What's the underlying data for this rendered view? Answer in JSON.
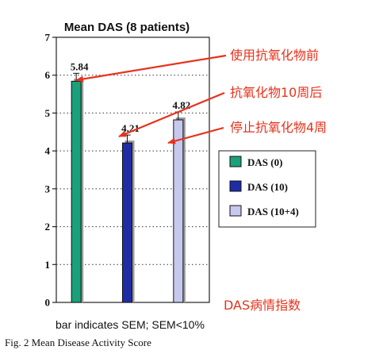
{
  "chart_data": {
    "type": "bar",
    "title": "Mean DAS (8 patients)",
    "categories": [
      "DAS (0)",
      "DAS (10)",
      "DAS (10+4)"
    ],
    "values": [
      5.84,
      4.21,
      4.82
    ],
    "value_labels": [
      "5.84",
      "4.21",
      "4.82"
    ],
    "colors": [
      "#1aa07a",
      "#1f2ca8",
      "#c6c8ee"
    ],
    "ylim": [
      0,
      7
    ],
    "yticks": [
      "0",
      "1",
      "2",
      "3",
      "4",
      "5",
      "6",
      "7"
    ],
    "grid": true,
    "legend_position": "right",
    "annotations": [
      "使用抗氧化物前",
      "抗氧化物10周后",
      "停止抗氧化物4周",
      "DAS病情指数"
    ],
    "note": "bar indicates SEM; SEM<10%",
    "caption": "Fig. 2  Mean Disease Activity Score"
  }
}
